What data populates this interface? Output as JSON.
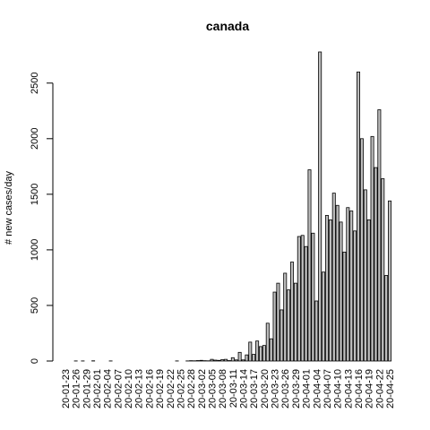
{
  "chart_data": {
    "type": "bar",
    "title": "canada",
    "xlabel": "",
    "ylabel": "# new cases/day",
    "ylim": [
      0,
      2780
    ],
    "yticks": [
      0,
      500,
      1000,
      1500,
      2000,
      2500
    ],
    "grid": false,
    "legend": "none",
    "bar_color": "#bebebe",
    "categories": [
      "20-01-23",
      "20-01-24",
      "20-01-25",
      "20-01-26",
      "20-01-27",
      "20-01-28",
      "20-01-29",
      "20-01-30",
      "20-01-31",
      "20-02-01",
      "20-02-02",
      "20-02-03",
      "20-02-04",
      "20-02-05",
      "20-02-06",
      "20-02-07",
      "20-02-08",
      "20-02-09",
      "20-02-10",
      "20-02-11",
      "20-02-12",
      "20-02-13",
      "20-02-14",
      "20-02-15",
      "20-02-16",
      "20-02-17",
      "20-02-18",
      "20-02-19",
      "20-02-20",
      "20-02-21",
      "20-02-22",
      "20-02-23",
      "20-02-24",
      "20-02-25",
      "20-02-26",
      "20-02-27",
      "20-02-28",
      "20-02-29",
      "20-03-01",
      "20-03-02",
      "20-03-03",
      "20-03-04",
      "20-03-05",
      "20-03-06",
      "20-03-07",
      "20-03-08",
      "20-03-09",
      "20-03-10",
      "20-03-11",
      "20-03-12",
      "20-03-13",
      "20-03-14",
      "20-03-15",
      "20-03-16",
      "20-03-17",
      "20-03-18",
      "20-03-19",
      "20-03-20",
      "20-03-21",
      "20-03-22",
      "20-03-23",
      "20-03-24",
      "20-03-25",
      "20-03-26",
      "20-03-27",
      "20-03-28",
      "20-03-29",
      "20-03-30",
      "20-03-31",
      "20-04-01",
      "20-04-02",
      "20-04-03",
      "20-04-04",
      "20-04-05",
      "20-04-06",
      "20-04-07",
      "20-04-08",
      "20-04-09",
      "20-04-10",
      "20-04-11",
      "20-04-12",
      "20-04-13",
      "20-04-14",
      "20-04-15",
      "20-04-16",
      "20-04-17",
      "20-04-18",
      "20-04-19",
      "20-04-20",
      "20-04-21",
      "20-04-22",
      "20-04-23",
      "20-04-24",
      "20-04-25"
    ],
    "xtick_labels": [
      "20-01-23",
      "20-01-26",
      "20-01-29",
      "20-02-01",
      "20-02-04",
      "20-02-07",
      "20-02-10",
      "20-02-13",
      "20-02-16",
      "20-02-19",
      "20-02-22",
      "20-02-25",
      "20-02-28",
      "20-03-02",
      "20-03-05",
      "20-03-08",
      "20-03-11",
      "20-03-14",
      "20-03-17",
      "20-03-20",
      "20-03-23",
      "20-03-26",
      "20-03-29",
      "20-04-01",
      "20-04-04",
      "20-04-07",
      "20-04-10",
      "20-04-13",
      "20-04-16",
      "20-04-19",
      "20-04-22",
      "20-04-25"
    ],
    "values": [
      0,
      0,
      0,
      1,
      0,
      1,
      0,
      0,
      2,
      0,
      0,
      0,
      0,
      1,
      0,
      0,
      0,
      0,
      0,
      0,
      0,
      0,
      0,
      0,
      0,
      0,
      0,
      0,
      0,
      0,
      0,
      0,
      1,
      0,
      0,
      1,
      3,
      2,
      4,
      6,
      3,
      2,
      15,
      8,
      6,
      12,
      15,
      4,
      30,
      10,
      78,
      10,
      55,
      170,
      60,
      180,
      130,
      140,
      340,
      200,
      620,
      700,
      460,
      790,
      640,
      890,
      700,
      1120,
      1130,
      1030,
      1720,
      1150,
      540,
      2780,
      800,
      1310,
      1270,
      1510,
      1400,
      1250,
      980,
      1380,
      1350,
      1170,
      2600,
      2000,
      1540,
      1270,
      2020,
      1740,
      2260,
      1640,
      770,
      1440
    ]
  }
}
